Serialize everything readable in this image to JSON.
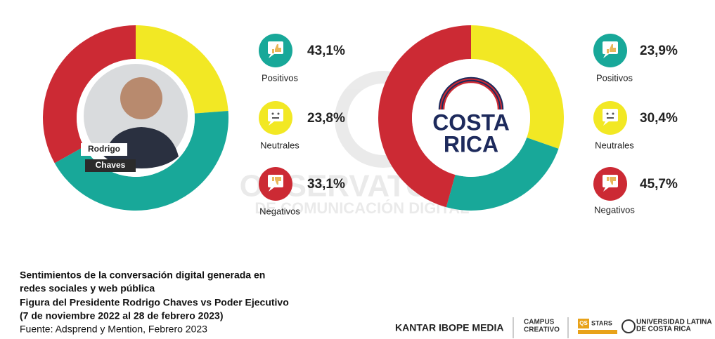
{
  "chart_data": [
    {
      "type": "pie",
      "center_label": [
        "Rodrigo",
        "Chaves"
      ],
      "categories": [
        "Positivos",
        "Neutrales",
        "Negativos"
      ],
      "values": [
        43.1,
        23.8,
        33.1
      ],
      "value_labels": [
        "43,1%",
        "23,8%",
        "33,1%"
      ],
      "colors": [
        "#18a899",
        "#f2e824",
        "#cc2a34"
      ]
    },
    {
      "type": "pie",
      "center_label": [
        "COSTA",
        "RICA"
      ],
      "categories": [
        "Positivos",
        "Neutrales",
        "Negativos"
      ],
      "values": [
        23.9,
        30.4,
        45.7
      ],
      "value_labels": [
        "23,9%",
        "30,4%",
        "45,7%"
      ],
      "colors": [
        "#18a899",
        "#f2e824",
        "#cc2a34"
      ]
    }
  ],
  "watermark": [
    "OBSERVATORIO",
    "DE COMUNICACIÓN DIGITAL"
  ],
  "caption": [
    "Sentimientos de la conversación digital generada en",
    "redes sociales y web pública",
    "Figura del Presidente Rodrigo Chaves vs Poder Ejecutivo",
    "(7 de noviembre 2022 al 28 de febrero 2023)",
    "Fuente: Adsprend y Mention, Febrero 2023"
  ],
  "logos": [
    "KANTAR IBOPE MEDIA",
    "CAMPUS",
    "CREATIVO",
    "QS",
    "STARS",
    "UNIVERSIDAD LATINA",
    "DE COSTA RICA"
  ]
}
